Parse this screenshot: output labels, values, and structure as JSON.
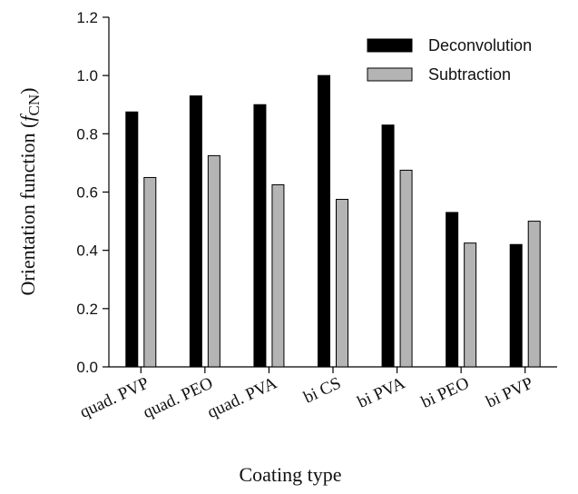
{
  "chart_data": {
    "type": "bar",
    "categories": [
      "quad. PVP",
      "quad. PEO",
      "quad. PVA",
      "bi CS",
      "bi PVA",
      "bi PEO",
      "bi PVP"
    ],
    "series": [
      {
        "name": "Deconvolution",
        "values": [
          0.875,
          0.93,
          0.9,
          1.0,
          0.83,
          0.53,
          0.42
        ],
        "color": "#000000"
      },
      {
        "name": "Subtraction",
        "values": [
          0.65,
          0.725,
          0.625,
          0.575,
          0.675,
          0.425,
          0.5
        ],
        "color": "#b4b4b4"
      }
    ],
    "xlabel": "Coating type",
    "ylabel_main": "Orientation function (",
    "ylabel_symbol": "f",
    "ylabel_subscript": "CN",
    "ylabel_close": ")",
    "ylim": [
      0,
      1.2
    ],
    "yticks": [
      "0.0",
      "0.2",
      "0.4",
      "0.6",
      "0.8",
      "1.0",
      "1.2"
    ],
    "grid": false,
    "legend_position": "top-right"
  }
}
